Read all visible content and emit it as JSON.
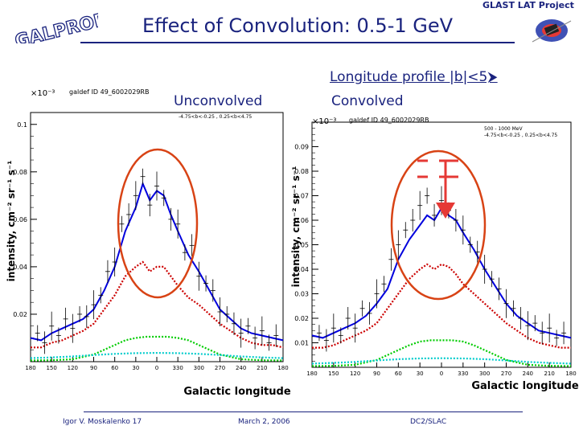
{
  "slide": {
    "title": "Effect of Convolution: 0.5-1 GeV",
    "subtitle": "Longitude profile |b|<5⮞",
    "logo_text": "GALPROP",
    "header_right": "GLAST LAT Project",
    "footer_author": "Igor V. Moskalenko  17",
    "footer_date": "March 2, 2006",
    "footer_place": "DC2/SLAC"
  },
  "colors": {
    "title": "#1a237e",
    "model_total": "#0000dd",
    "model_component_red": "#cc0000",
    "model_component_green": "#00cc00",
    "model_component_cyan": "#00cccc",
    "highlight_circle": "#d84315",
    "arrow": "#e53935"
  },
  "icons": {
    "galprop_logo": "galprop-logo-icon",
    "glast_logo": "glast-satellite-icon",
    "arrow": "down-arrow-icon"
  },
  "chart_data": [
    {
      "type": "line",
      "panel_label": "Unconvolved",
      "plot_title": "galdef ID 49_6002029RB",
      "exponent": "×10⁻³",
      "annotation": "-4.75<b<-0.25 ,  0.25<b<4.75",
      "xlabel": "Galactic longitude",
      "ylabel": "intensity, cm⁻² sr⁻¹ s⁻¹",
      "xlim": [
        180,
        -180
      ],
      "ylim": [
        0,
        0.105
      ],
      "x_tick_labels": [
        "180",
        "150",
        "120",
        "90",
        "60",
        "30",
        "0",
        "330",
        "300",
        "270",
        "240",
        "210",
        "180"
      ],
      "y_tick_labels": [
        "0.02",
        "0.04",
        "0.06",
        "0.08",
        "0.1"
      ],
      "y_ticks": [
        0.02,
        0.04,
        0.06,
        0.08,
        0.1
      ],
      "highlight": "ellipse around inner Galaxy",
      "series": [
        {
          "color": "#0000dd",
          "style": "solid",
          "x": [
            180,
            165,
            150,
            135,
            120,
            105,
            90,
            75,
            60,
            45,
            30,
            20,
            10,
            0,
            -10,
            -20,
            -30,
            -45,
            -60,
            -75,
            -90,
            -105,
            -120,
            -135,
            -150,
            -165,
            -180
          ],
          "y": [
            0.01,
            0.009,
            0.012,
            0.014,
            0.016,
            0.018,
            0.022,
            0.03,
            0.04,
            0.055,
            0.065,
            0.075,
            0.068,
            0.072,
            0.07,
            0.062,
            0.055,
            0.045,
            0.038,
            0.03,
            0.022,
            0.018,
            0.014,
            0.012,
            0.011,
            0.01,
            0.009
          ]
        },
        {
          "color": "#cc0000",
          "style": "dotted",
          "x": [
            180,
            165,
            150,
            135,
            120,
            105,
            90,
            75,
            60,
            45,
            30,
            20,
            10,
            0,
            -10,
            -20,
            -30,
            -45,
            -60,
            -75,
            -90,
            -105,
            -120,
            -135,
            -150,
            -165,
            -180
          ],
          "y": [
            0.006,
            0.006,
            0.008,
            0.009,
            0.011,
            0.013,
            0.016,
            0.022,
            0.028,
            0.036,
            0.04,
            0.042,
            0.038,
            0.04,
            0.04,
            0.036,
            0.032,
            0.027,
            0.024,
            0.02,
            0.016,
            0.013,
            0.01,
            0.008,
            0.007,
            0.007,
            0.006
          ]
        },
        {
          "color": "#00cc00",
          "style": "dotted",
          "x": [
            180,
            150,
            120,
            90,
            60,
            45,
            30,
            15,
            0,
            -15,
            -30,
            -45,
            -60,
            -90,
            -120,
            -150,
            -180
          ],
          "y": [
            0.0005,
            0.0006,
            0.001,
            0.003,
            0.007,
            0.009,
            0.01,
            0.0105,
            0.0105,
            0.0105,
            0.01,
            0.009,
            0.007,
            0.003,
            0.001,
            0.0006,
            0.0005
          ]
        },
        {
          "color": "#00cccc",
          "style": "dotted",
          "x": [
            180,
            150,
            120,
            90,
            60,
            30,
            0,
            -30,
            -60,
            -90,
            -120,
            -150,
            -180
          ],
          "y": [
            0.0015,
            0.0018,
            0.0022,
            0.0028,
            0.0033,
            0.0036,
            0.0037,
            0.0036,
            0.0033,
            0.0028,
            0.0022,
            0.0018,
            0.0015
          ]
        }
      ],
      "data_points": {
        "x": [
          170,
          160,
          150,
          140,
          130,
          120,
          110,
          100,
          90,
          80,
          70,
          60,
          50,
          40,
          30,
          20,
          10,
          0,
          -10,
          -20,
          -30,
          -40,
          -50,
          -60,
          -70,
          -80,
          -90,
          -100,
          -110,
          -120,
          -130,
          -140,
          -150,
          -160,
          -170
        ],
        "y": [
          0.012,
          0.008,
          0.015,
          0.011,
          0.018,
          0.014,
          0.02,
          0.019,
          0.024,
          0.028,
          0.038,
          0.042,
          0.058,
          0.062,
          0.07,
          0.078,
          0.066,
          0.074,
          0.069,
          0.06,
          0.058,
          0.046,
          0.049,
          0.036,
          0.033,
          0.03,
          0.021,
          0.02,
          0.016,
          0.012,
          0.015,
          0.01,
          0.013,
          0.008,
          0.011
        ]
      }
    },
    {
      "type": "line",
      "panel_label": "Convolved",
      "plot_title": "galdef ID 49_6002029RB",
      "exponent": "×10⁻³",
      "annotation": "500 - 1000 MeV\n-4.75<b<-0.25 ,  0.25<b<4.75",
      "xlabel": "Galactic longitude",
      "ylabel": "intensity, cm⁻² sr⁻¹ s⁻¹",
      "xlim": [
        180,
        -180
      ],
      "ylim": [
        0,
        0.1
      ],
      "x_tick_labels": [
        "180",
        "150",
        "120",
        "90",
        "60",
        "30",
        "0",
        "330",
        "300",
        "270",
        "240",
        "210",
        "180"
      ],
      "y_tick_labels": [
        "0.01",
        "0.02",
        "0.03",
        "0.04",
        "0.05",
        "0.06",
        "0.07",
        "0.08",
        "0.09"
      ],
      "y_ticks": [
        0.01,
        0.02,
        0.03,
        0.04,
        0.05,
        0.06,
        0.07,
        0.08,
        0.09
      ],
      "highlight": "ellipse around inner Galaxy with arrow marking reduced peak",
      "series": [
        {
          "color": "#0000dd",
          "style": "solid",
          "x": [
            180,
            165,
            150,
            135,
            120,
            105,
            90,
            75,
            60,
            45,
            30,
            20,
            10,
            0,
            -10,
            -20,
            -30,
            -45,
            -60,
            -75,
            -90,
            -105,
            -120,
            -135,
            -150,
            -165,
            -180
          ],
          "y": [
            0.013,
            0.012,
            0.014,
            0.016,
            0.018,
            0.021,
            0.026,
            0.032,
            0.044,
            0.052,
            0.058,
            0.062,
            0.06,
            0.065,
            0.062,
            0.06,
            0.055,
            0.048,
            0.04,
            0.033,
            0.026,
            0.021,
            0.018,
            0.015,
            0.014,
            0.013,
            0.012
          ]
        },
        {
          "color": "#cc0000",
          "style": "dotted",
          "x": [
            180,
            165,
            150,
            135,
            120,
            105,
            90,
            75,
            60,
            45,
            30,
            20,
            10,
            0,
            -10,
            -20,
            -30,
            -45,
            -60,
            -75,
            -90,
            -105,
            -120,
            -135,
            -150,
            -165,
            -180
          ],
          "y": [
            0.008,
            0.008,
            0.009,
            0.011,
            0.013,
            0.015,
            0.018,
            0.024,
            0.03,
            0.036,
            0.04,
            0.042,
            0.04,
            0.042,
            0.041,
            0.038,
            0.034,
            0.03,
            0.026,
            0.022,
            0.018,
            0.015,
            0.012,
            0.01,
            0.009,
            0.008,
            0.008
          ]
        },
        {
          "color": "#00cc00",
          "style": "dotted",
          "x": [
            180,
            150,
            120,
            90,
            60,
            45,
            30,
            15,
            0,
            -15,
            -30,
            -45,
            -60,
            -90,
            -120,
            -150,
            -180
          ],
          "y": [
            0.0005,
            0.0006,
            0.001,
            0.003,
            0.007,
            0.009,
            0.0105,
            0.011,
            0.011,
            0.011,
            0.0105,
            0.009,
            0.007,
            0.003,
            0.001,
            0.0006,
            0.0005
          ]
        },
        {
          "color": "#00cccc",
          "style": "dotted",
          "x": [
            180,
            150,
            120,
            90,
            60,
            30,
            0,
            -30,
            -60,
            -90,
            -120,
            -150,
            -180
          ],
          "y": [
            0.0015,
            0.0018,
            0.0022,
            0.0028,
            0.0033,
            0.0036,
            0.0037,
            0.0036,
            0.0033,
            0.0028,
            0.0022,
            0.0018,
            0.0015
          ]
        }
      ],
      "data_points": {
        "x": [
          170,
          160,
          150,
          140,
          130,
          120,
          110,
          100,
          90,
          80,
          70,
          60,
          50,
          40,
          30,
          20,
          10,
          0,
          -10,
          -20,
          -30,
          -40,
          -50,
          -60,
          -70,
          -80,
          -90,
          -100,
          -110,
          -120,
          -130,
          -140,
          -150,
          -160,
          -170
        ],
        "y": [
          0.014,
          0.011,
          0.016,
          0.013,
          0.02,
          0.016,
          0.024,
          0.022,
          0.03,
          0.034,
          0.044,
          0.05,
          0.056,
          0.06,
          0.066,
          0.07,
          0.062,
          0.068,
          0.064,
          0.06,
          0.056,
          0.05,
          0.047,
          0.04,
          0.036,
          0.032,
          0.026,
          0.024,
          0.02,
          0.017,
          0.018,
          0.014,
          0.016,
          0.012,
          0.014
        ]
      }
    }
  ]
}
